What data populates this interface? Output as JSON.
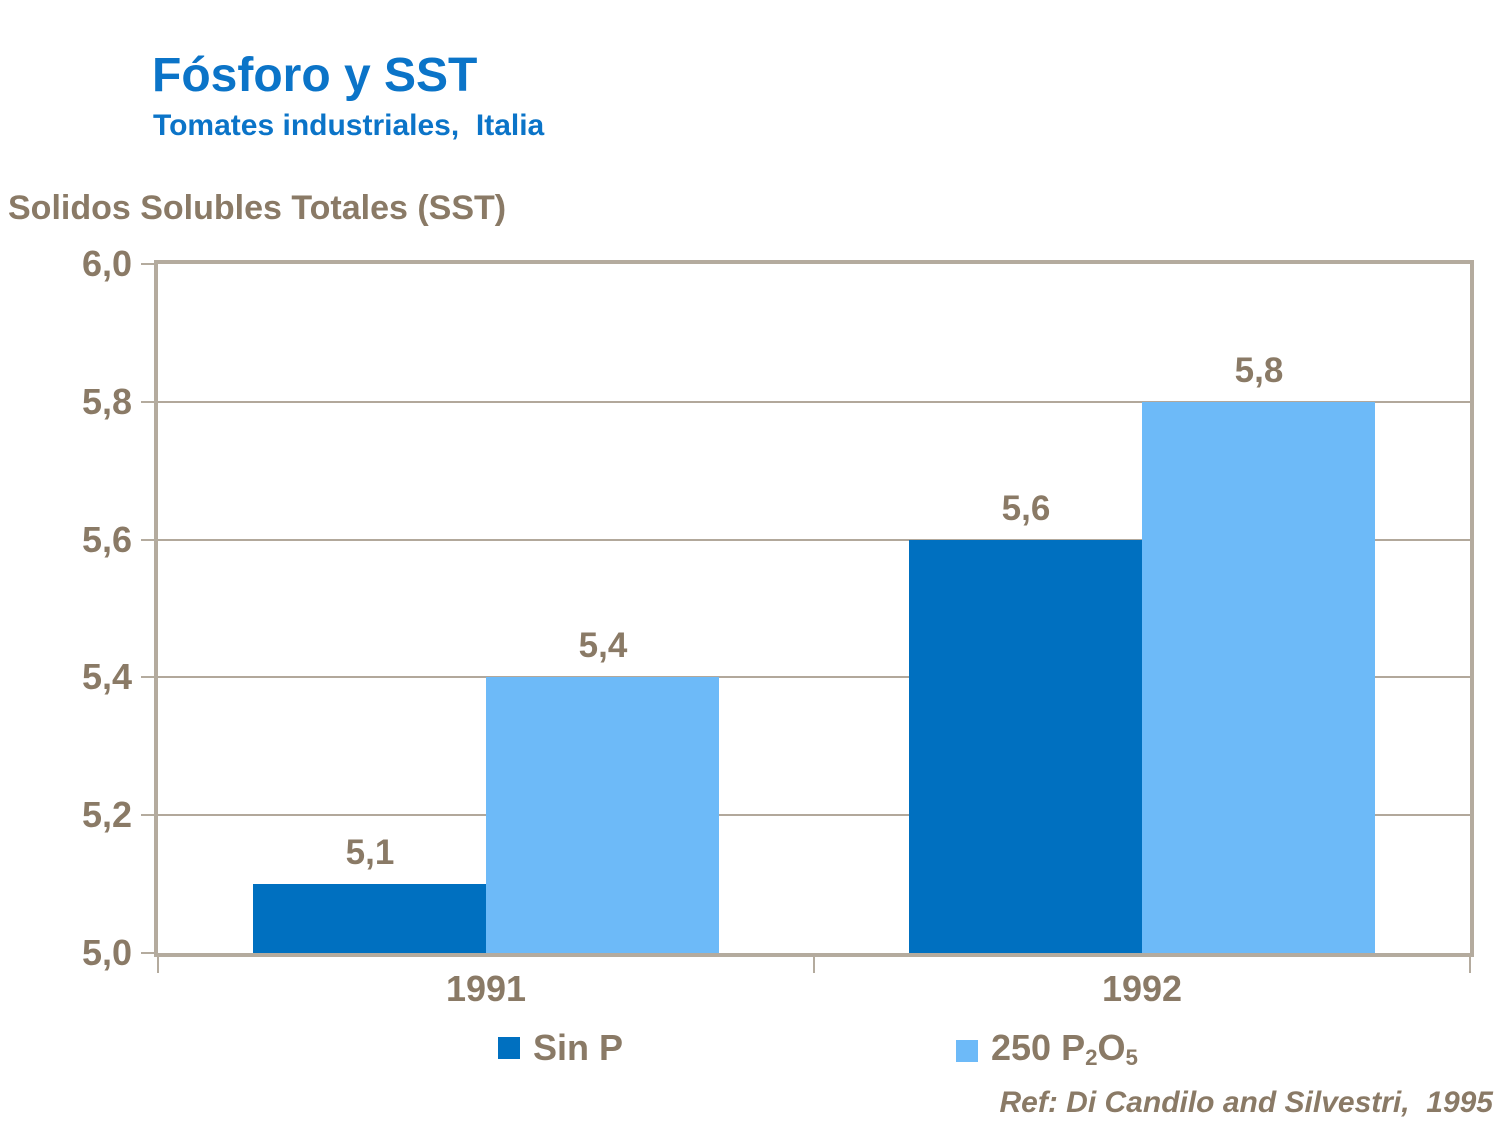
{
  "colors": {
    "title_blue": "#0B74C8",
    "text_brown": "#8A7A66",
    "frame": "#B4AB9E",
    "gridline": "#B2A89B",
    "series1": "#0070C0",
    "series2": "#6DBAF8",
    "background": "#FFFFFF"
  },
  "chart_data": {
    "type": "bar",
    "title": "Fósforo y SST",
    "subtitle": "Tomates industriales,  Italia",
    "ylabel": "Solidos Solubles Totales (SST)",
    "xlabel": "",
    "categories": [
      "1991",
      "1992"
    ],
    "series": [
      {
        "name": "Sin P",
        "color": "#0070C0",
        "values": [
          5.1,
          5.6
        ],
        "value_labels": [
          "5,1",
          "5,6"
        ]
      },
      {
        "name": "250 P₂O₅",
        "color": "#6DBAF8",
        "values": [
          5.4,
          5.8
        ],
        "value_labels": [
          "5,4",
          "5,8"
        ]
      }
    ],
    "ylim": [
      5.0,
      6.0
    ],
    "yticks": [
      {
        "value": 6.0,
        "label": "6,0"
      },
      {
        "value": 5.8,
        "label": "5,8"
      },
      {
        "value": 5.6,
        "label": "5,6"
      },
      {
        "value": 5.4,
        "label": "5,4"
      },
      {
        "value": 5.2,
        "label": "5,2"
      },
      {
        "value": 5.0,
        "label": "5,0"
      }
    ],
    "grid": true,
    "legend_position": "bottom",
    "annotation": "Ref: Di Candilo and Silvestri,  1995"
  },
  "legend": {
    "items": [
      {
        "label": "Sin P",
        "swatch_color": "#0070C0",
        "parts": [
          {
            "text": "Sin P",
            "sub": false
          }
        ]
      },
      {
        "label": "250 P₂O₅",
        "swatch_color": "#6DBAF8",
        "parts": [
          {
            "text": "250 P",
            "sub": false
          },
          {
            "text": "2",
            "sub": true
          },
          {
            "text": "O",
            "sub": false
          },
          {
            "text": "5",
            "sub": true
          }
        ]
      }
    ]
  }
}
